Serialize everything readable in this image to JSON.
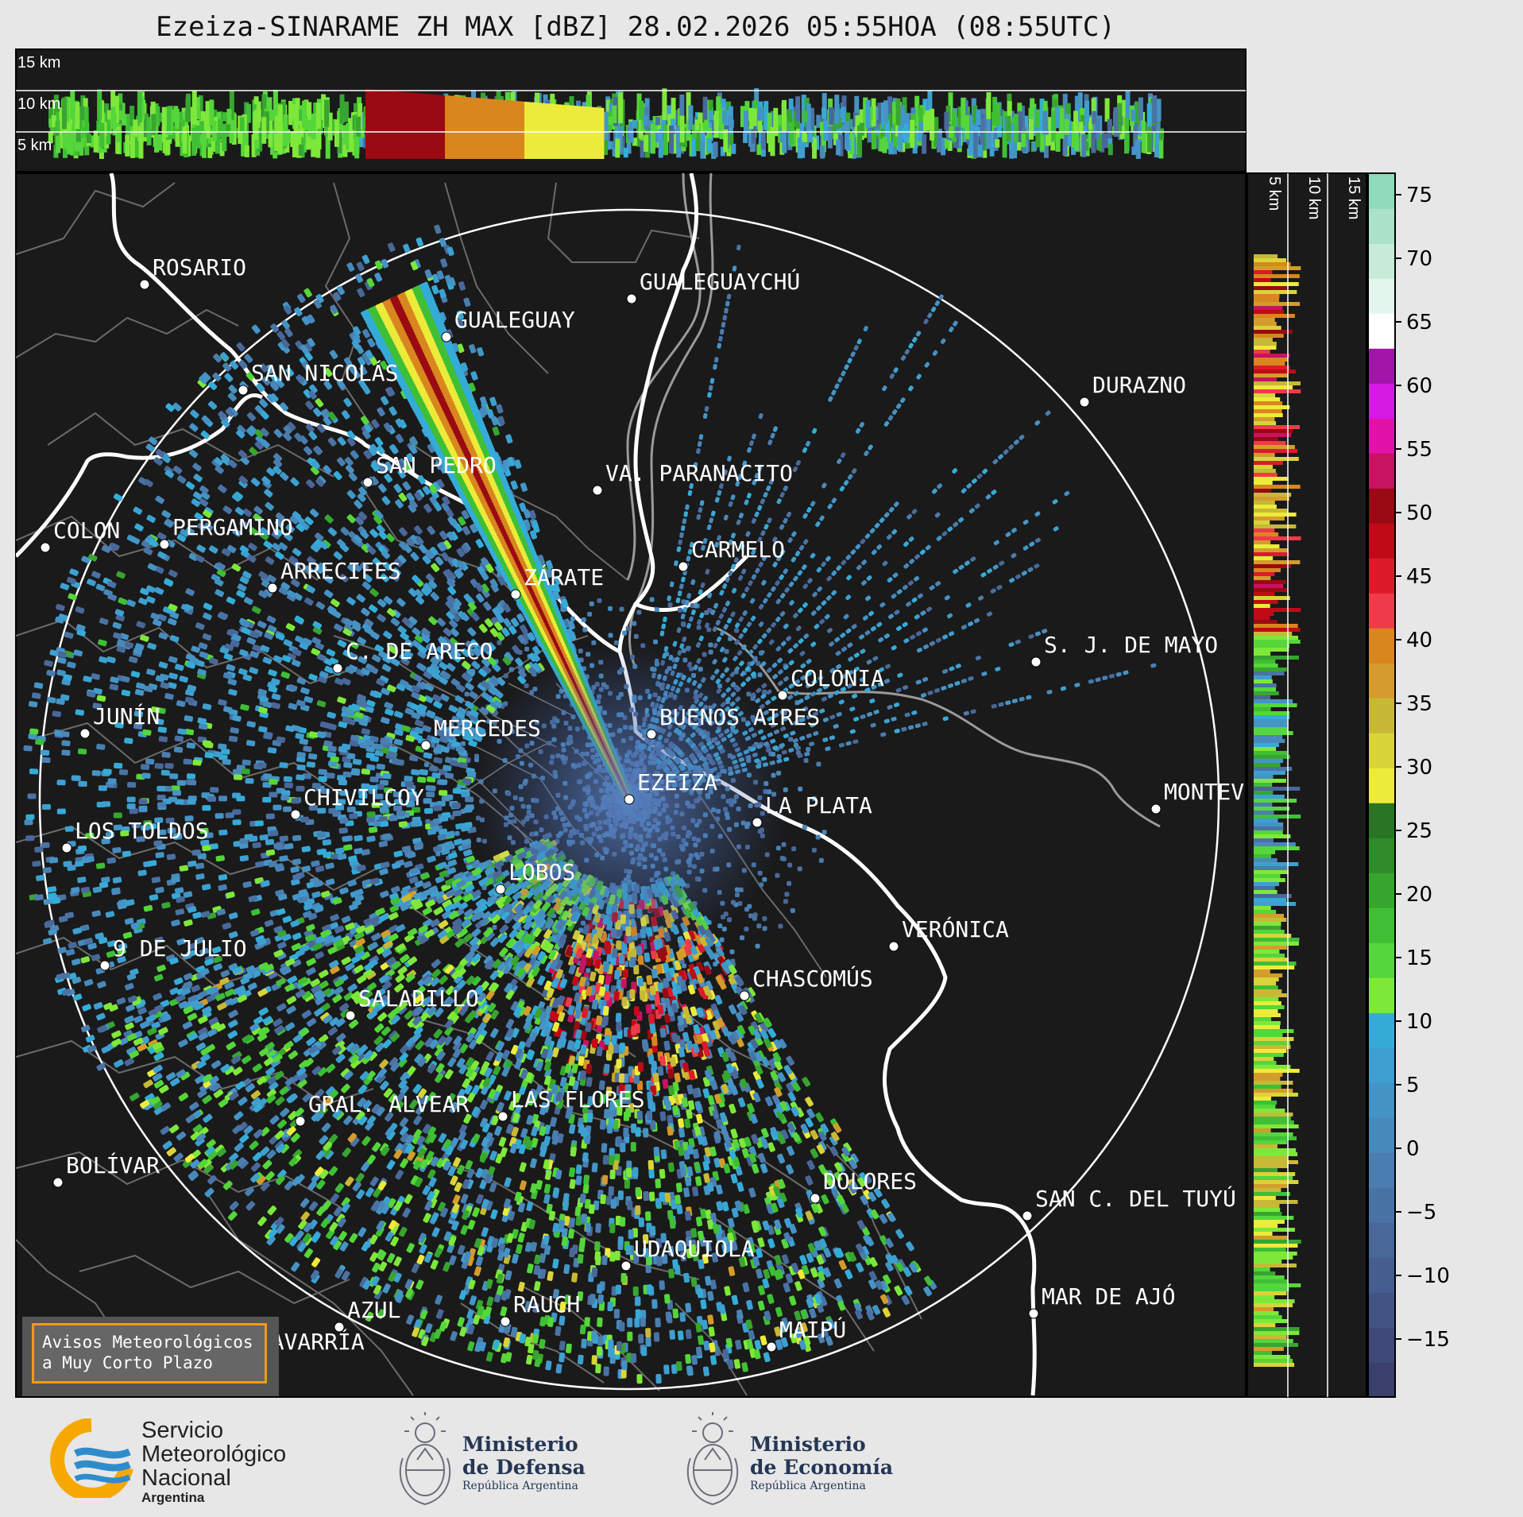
{
  "title": "Ezeiza-SINARAME ZH MAX [dBZ] 28.02.2026 05:55HOA (08:55UTC)",
  "top_panel": {
    "height_labels": [
      "15 km",
      "10 km",
      "5 km"
    ]
  },
  "side_panel": {
    "height_labels": [
      "5 km",
      "10 km",
      "15 km"
    ]
  },
  "colorbar": {
    "unit": "dBZ",
    "ticks": [
      "75",
      "70",
      "65",
      "60",
      "55",
      "50",
      "45",
      "40",
      "35",
      "30",
      "25",
      "20",
      "15",
      "10",
      "5",
      "0",
      "−5",
      "−10",
      "−15"
    ],
    "colors": [
      "#3b3f6b",
      "#3f4a78",
      "#435484",
      "#465e8f",
      "#49689a",
      "#4a73a5",
      "#4a7eb0",
      "#4889bb",
      "#4494c6",
      "#3da0d0",
      "#35acd8",
      "#7ee83a",
      "#55d63a",
      "#3fbf35",
      "#37a530",
      "#2f8b2a",
      "#2a7425",
      "#eceb3a",
      "#d8d43a",
      "#c7b936",
      "#d49c2c",
      "#d9861f",
      "#ef3a4a",
      "#dc1a2a",
      "#c10a18",
      "#9a0a12",
      "#c81262",
      "#e012a8",
      "#d619e3",
      "#a116a9",
      "#ffffff",
      "#e2f6ec",
      "#c6ecd9",
      "#aae3c9",
      "#8fdabb"
    ]
  },
  "cities": [
    {
      "name": "ROSARIO"
    },
    {
      "name": "GUALEGUAYCHÚ"
    },
    {
      "name": "GUALEGUAY"
    },
    {
      "name": "SAN NICOLÁS"
    },
    {
      "name": "DURAZNO"
    },
    {
      "name": "SAN PEDRO"
    },
    {
      "name": "VA. PARANACITO"
    },
    {
      "name": "COLON"
    },
    {
      "name": "PERGAMINO"
    },
    {
      "name": "CARMELO"
    },
    {
      "name": "ARRECIFES"
    },
    {
      "name": "ZÁRATE"
    },
    {
      "name": "S. J. DE MAYO"
    },
    {
      "name": "C. DE ARECO"
    },
    {
      "name": "COLONIA"
    },
    {
      "name": "JUNÍN"
    },
    {
      "name": "BUENOS AIRES"
    },
    {
      "name": "MERCEDES"
    },
    {
      "name": "EZEIZA"
    },
    {
      "name": "MONTEVIDEO"
    },
    {
      "name": "CHIVILCOY"
    },
    {
      "name": "LA PLATA"
    },
    {
      "name": "LOS TOLDOS"
    },
    {
      "name": "LOBOS"
    },
    {
      "name": "VERÓNICA"
    },
    {
      "name": "9 DE JULIO"
    },
    {
      "name": "CHASCOMÚS"
    },
    {
      "name": "SALADILLO"
    },
    {
      "name": "GRAL. ALVEAR"
    },
    {
      "name": "LAS FLORES"
    },
    {
      "name": "BOLÍVAR"
    },
    {
      "name": "DOLORES"
    },
    {
      "name": "SAN C. DEL TUYÚ"
    },
    {
      "name": "UDAQUIOLA"
    },
    {
      "name": "MAR DE AJÓ"
    },
    {
      "name": "RAUCH"
    },
    {
      "name": "AZUL"
    },
    {
      "name": "OLAVARRÍA"
    },
    {
      "name": "MAIPÚ"
    }
  ],
  "warning_box": {
    "line1": "Avisos Meteorológicos",
    "line2": "a Muy Corto Plazo",
    "border_color": "#f29a14"
  },
  "logos": {
    "smn": {
      "line1": "Servicio",
      "line2": "Meteorológico",
      "line3": "Nacional",
      "line4": "Argentina"
    },
    "defensa": {
      "line1": "Ministerio",
      "line2": "de Defensa",
      "line3": "República Argentina"
    },
    "economia": {
      "line1": "Ministerio",
      "line2": "de Economía",
      "line3": "República Argentina"
    }
  }
}
